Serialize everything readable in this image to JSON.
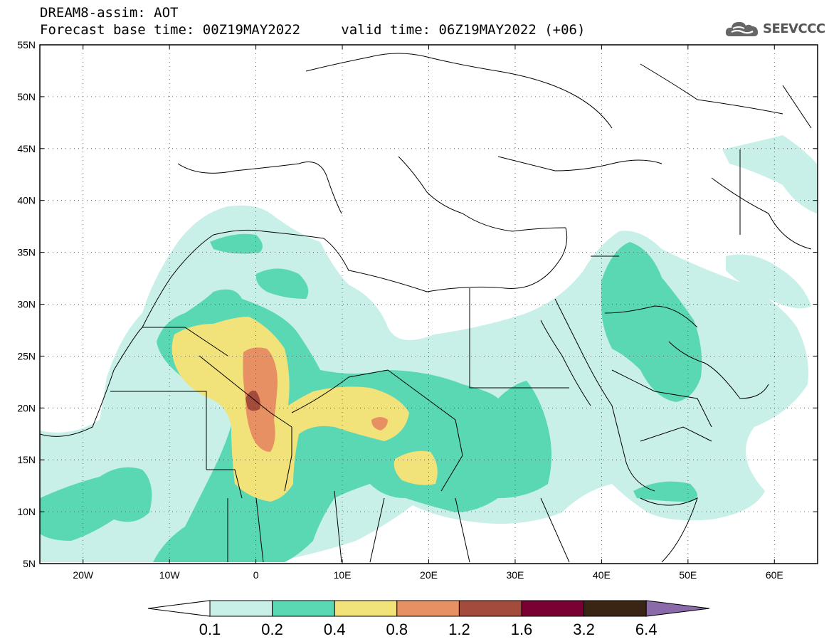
{
  "header": {
    "title": "DREAM8-assim: AOT",
    "base_time": "Forecast base time: 00Z19MAY2022",
    "valid_time": "valid time: 06Z19MAY2022 (+06)"
  },
  "logo": {
    "text": "SEEVCCC",
    "icon": "cloud-icon"
  },
  "map": {
    "lat_ticks": [
      "55N",
      "50N",
      "45N",
      "40N",
      "35N",
      "30N",
      "25N",
      "20N",
      "15N",
      "10N",
      "5N"
    ],
    "lon_ticks": [
      "20W",
      "10W",
      "0",
      "10E",
      "20E",
      "30E",
      "40E",
      "50E",
      "60E"
    ]
  },
  "colorbar": {
    "labels": [
      "0.1",
      "0.2",
      "0.4",
      "0.8",
      "1.2",
      "1.6",
      "3.2",
      "6.4"
    ],
    "colors": [
      "#ffffff",
      "#c8f0e8",
      "#5ad8b4",
      "#f2e27a",
      "#e69064",
      "#a34c3c",
      "#7a0032",
      "#3a2414",
      "#8a6aa8"
    ]
  }
}
